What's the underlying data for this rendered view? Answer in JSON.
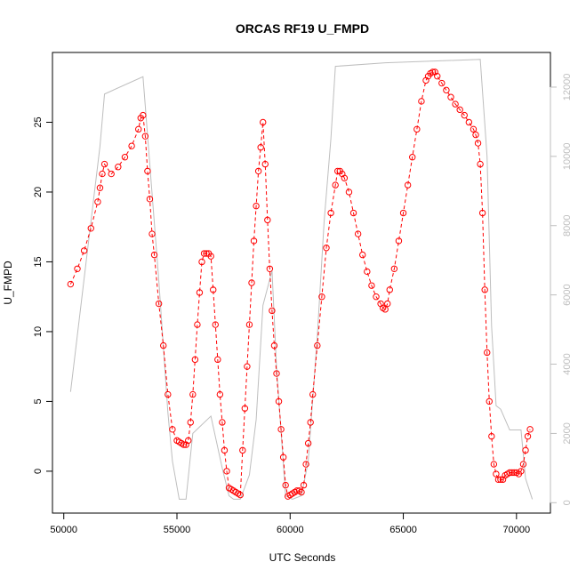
{
  "chart_data": {
    "type": "line",
    "title": "ORCAS RF19 U_FMPD",
    "xlabel": "UTC Seconds",
    "ylabel": "U_FMPD",
    "xlim": [
      49500,
      71500
    ],
    "ylim": [
      -3,
      30
    ],
    "y2lim": [
      -300,
      13000
    ],
    "x_ticks": [
      50000,
      55000,
      60000,
      65000,
      70000
    ],
    "y_ticks": [
      0,
      5,
      10,
      15,
      20,
      25
    ],
    "y2_ticks": [
      0,
      2000,
      4000,
      6000,
      8000,
      10000,
      12000
    ],
    "colors": {
      "primary": "#ff0000",
      "secondary": "#bebebe",
      "axis": "#000000"
    },
    "series": [
      {
        "marker": "open-circle",
        "color": "#ff0000",
        "axis": "left",
        "x": [
          50300,
          50600,
          50900,
          51200,
          51500,
          51600,
          51700,
          51800,
          52100,
          52400,
          52700,
          53000,
          53300,
          53400,
          53500,
          53600,
          53700,
          53800,
          53900,
          54000,
          54200,
          54400,
          54600,
          54800,
          55000,
          55100,
          55200,
          55300,
          55400,
          55500,
          55600,
          55700,
          55800,
          55900,
          56000,
          56100,
          56200,
          56300,
          56400,
          56500,
          56600,
          56700,
          56800,
          56900,
          57000,
          57100,
          57200,
          57300,
          57400,
          57500,
          57600,
          57700,
          57800,
          57900,
          58000,
          58100,
          58200,
          58300,
          58400,
          58500,
          58600,
          58700,
          58800,
          58900,
          59000,
          59100,
          59200,
          59300,
          59400,
          59500,
          59600,
          59700,
          59800,
          59900,
          60000,
          60100,
          60200,
          60300,
          60400,
          60500,
          60600,
          60700,
          60800,
          60900,
          61000,
          61200,
          61400,
          61600,
          61800,
          62000,
          62100,
          62200,
          62300,
          62400,
          62600,
          62800,
          63000,
          63200,
          63400,
          63600,
          63800,
          64000,
          64100,
          64200,
          64300,
          64400,
          64600,
          64800,
          65000,
          65200,
          65400,
          65600,
          65800,
          66000,
          66100,
          66200,
          66300,
          66400,
          66500,
          66700,
          66900,
          67100,
          67300,
          67500,
          67700,
          67900,
          68100,
          68200,
          68300,
          68400,
          68500,
          68600,
          68700,
          68800,
          68900,
          69000,
          69100,
          69200,
          69300,
          69400,
          69500,
          69600,
          69700,
          69800,
          69900,
          70000,
          70100,
          70200,
          70300,
          70400,
          70500,
          70600
        ],
        "y": [
          13.4,
          14.5,
          15.8,
          17.4,
          19.3,
          20.3,
          21.3,
          22.0,
          21.3,
          21.8,
          22.5,
          23.3,
          24.5,
          25.3,
          25.5,
          24.0,
          21.5,
          19.5,
          17.0,
          15.5,
          12.0,
          9.0,
          5.5,
          3.0,
          2.2,
          2.1,
          2.0,
          1.9,
          1.9,
          2.2,
          3.5,
          5.5,
          8.0,
          10.5,
          12.8,
          15.0,
          15.6,
          15.6,
          15.6,
          15.4,
          13.0,
          10.5,
          8.0,
          5.5,
          3.5,
          1.5,
          0.0,
          -1.2,
          -1.3,
          -1.4,
          -1.5,
          -1.6,
          -1.7,
          1.5,
          4.5,
          7.5,
          10.5,
          13.5,
          16.5,
          19.0,
          21.5,
          23.2,
          25.0,
          22.0,
          18.0,
          14.5,
          11.5,
          9.0,
          7.0,
          5.0,
          3.0,
          1.0,
          -1.0,
          -1.8,
          -1.7,
          -1.6,
          -1.5,
          -1.4,
          -1.4,
          -1.5,
          -1.0,
          0.5,
          2.0,
          3.5,
          5.5,
          9.0,
          12.5,
          16.0,
          18.5,
          20.5,
          21.5,
          21.5,
          21.3,
          21.0,
          20.0,
          18.5,
          17.0,
          15.5,
          14.3,
          13.3,
          12.5,
          12.0,
          11.7,
          11.6,
          12.0,
          13.0,
          14.5,
          16.5,
          18.5,
          20.5,
          22.5,
          24.5,
          26.5,
          28.0,
          28.3,
          28.5,
          28.6,
          28.6,
          28.3,
          27.8,
          27.3,
          26.8,
          26.3,
          25.9,
          25.5,
          25.0,
          24.5,
          24.1,
          23.5,
          22.0,
          18.5,
          13.0,
          8.5,
          5.0,
          2.5,
          0.5,
          -0.2,
          -0.6,
          -0.6,
          -0.6,
          -0.3,
          -0.2,
          -0.1,
          -0.1,
          -0.1,
          -0.1,
          -0.2,
          0.0,
          0.5,
          1.5,
          2.5,
          3.0
        ]
      },
      {
        "marker": "line",
        "color": "#bebebe",
        "axis": "right",
        "x": [
          50300,
          51600,
          51800,
          53500,
          54200,
          54600,
          54800,
          55100,
          55400,
          55700,
          56500,
          57000,
          57300,
          57500,
          57800,
          58200,
          58500,
          58800,
          59200,
          59400,
          59800,
          60100,
          60500,
          60800,
          61200,
          61500,
          61800,
          62000,
          64200,
          68400,
          68700,
          68900,
          69100,
          69300,
          69500,
          69700,
          69900,
          70200,
          70400,
          70700
        ],
        "y": [
          3200,
          10300,
          11800,
          12300,
          6400,
          2600,
          1200,
          100,
          100,
          2000,
          2500,
          1000,
          200,
          100,
          100,
          800,
          2400,
          5700,
          6700,
          3900,
          200,
          100,
          200,
          1200,
          4800,
          8100,
          10500,
          12600,
          12700,
          12800,
          10000,
          5100,
          2800,
          2700,
          2400,
          2100,
          2100,
          2100,
          700,
          100
        ]
      }
    ]
  }
}
